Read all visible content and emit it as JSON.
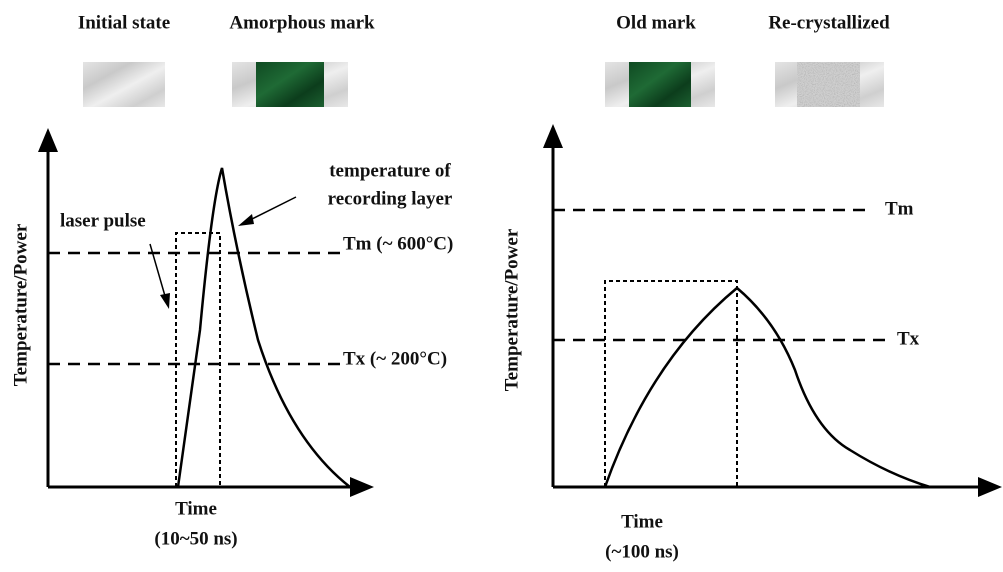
{
  "panels": [
    {
      "swatches": [
        "Initial state",
        "Amorphous mark"
      ],
      "y_axis": "Temperature/Power",
      "x_axis": {
        "label": "Time",
        "range": "(10~50 ns)"
      },
      "annotations": {
        "laser_pulse": "laser pulse",
        "temperature": [
          "temperature of",
          "recording layer"
        ]
      },
      "levels": [
        "Tm (~ 600°C)",
        "Tx (~ 200°C)"
      ]
    },
    {
      "swatches": [
        "Old mark",
        "Re-crystallized"
      ],
      "y_axis": "Temperature/Power",
      "x_axis": {
        "label": "Time",
        "range": "(~100 ns)"
      },
      "levels": [
        "Tm",
        "Tx"
      ]
    }
  ]
}
